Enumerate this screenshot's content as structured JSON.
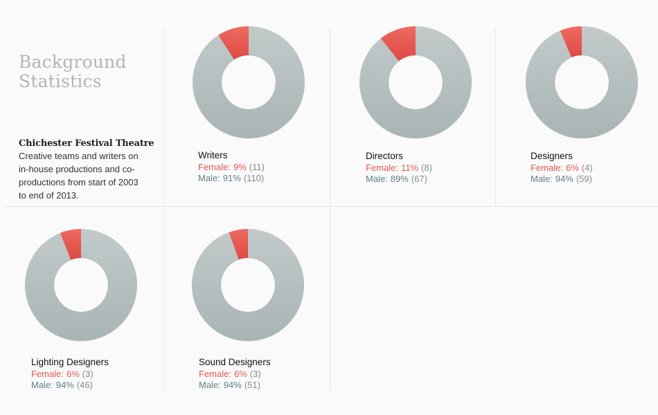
{
  "intro": {
    "title": "Background Statistics",
    "subtitle": "Chichester Festival Theatre",
    "description": "Creative teams and writers on in-house productions and co-productions from start of 2003 to end of 2013."
  },
  "colors": {
    "female": "#e8574f",
    "male": "#b5bfc0",
    "female_text": "#e8574f",
    "male_text": "#5f7f86"
  },
  "labels": {
    "female": "Female:",
    "male": "Male:"
  },
  "chart_data": [
    {
      "type": "pie",
      "title": "Writers",
      "categories": [
        "Female",
        "Male"
      ],
      "values": [
        11,
        110
      ],
      "percents": [
        "9%",
        "91%"
      ],
      "counts": [
        "(11)",
        "(110)"
      ]
    },
    {
      "type": "pie",
      "title": "Directors",
      "categories": [
        "Female",
        "Male"
      ],
      "values": [
        8,
        67
      ],
      "percents": [
        "11%",
        "89%"
      ],
      "counts": [
        "(8)",
        "(67)"
      ]
    },
    {
      "type": "pie",
      "title": "Designers",
      "categories": [
        "Female",
        "Male"
      ],
      "values": [
        4,
        59
      ],
      "percents": [
        "6%",
        "94%"
      ],
      "counts": [
        "(4)",
        "(59)"
      ]
    },
    {
      "type": "pie",
      "title": "Lighting Designers",
      "categories": [
        "Female",
        "Male"
      ],
      "values": [
        3,
        46
      ],
      "percents": [
        "6%",
        "94%"
      ],
      "counts": [
        "(3)",
        "(46)"
      ]
    },
    {
      "type": "pie",
      "title": "Sound Designers",
      "categories": [
        "Female",
        "Male"
      ],
      "values": [
        3,
        51
      ],
      "percents": [
        "6%",
        "94%"
      ],
      "counts": [
        "(3)",
        "(51)"
      ]
    }
  ]
}
